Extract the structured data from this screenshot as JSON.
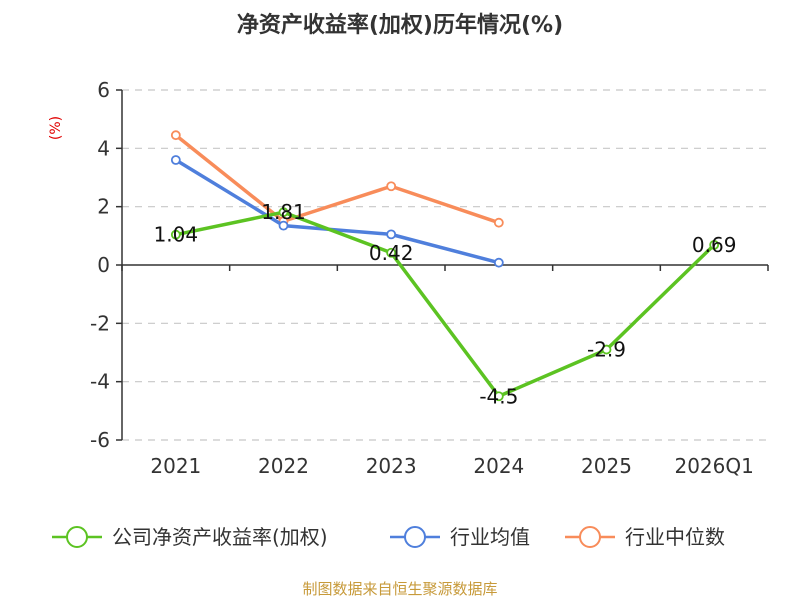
{
  "colors": {
    "company": "#5cc322",
    "industry_avg": "#4f7fdc",
    "industry_median": "#f88c5a",
    "grid": "#c8c8c8",
    "axis": "#333333",
    "unit": "#e00000",
    "source": "#c79a3a"
  },
  "chart_data": {
    "type": "line",
    "title": "净资产收益率(加权)历年情况(%)",
    "ylabel": "(%)",
    "xlabel": "",
    "ylim": [
      -6,
      6
    ],
    "yticks": [
      6,
      4,
      2,
      0,
      -2,
      -4,
      -6
    ],
    "categories": [
      "2021",
      "2022",
      "2023",
      "2024",
      "2025",
      "2026Q1"
    ],
    "grid": true,
    "legend_position": "bottom",
    "series": [
      {
        "key": "company",
        "name": "公司净资产收益率(加权)",
        "values": [
          1.04,
          1.81,
          0.42,
          -4.5,
          -2.9,
          0.69
        ],
        "labels": [
          "1.04",
          "1.81",
          "0.42",
          "-4.5",
          "-2.9",
          "0.69"
        ]
      },
      {
        "key": "industry_avg",
        "name": "行业均值",
        "values": [
          3.6,
          1.35,
          1.05,
          0.08,
          null,
          null
        ]
      },
      {
        "key": "industry_median",
        "name": "行业中位数",
        "values": [
          4.45,
          1.5,
          2.7,
          1.45,
          null,
          null
        ]
      }
    ]
  },
  "footer": {
    "source": "制图数据来自恒生聚源数据库"
  }
}
